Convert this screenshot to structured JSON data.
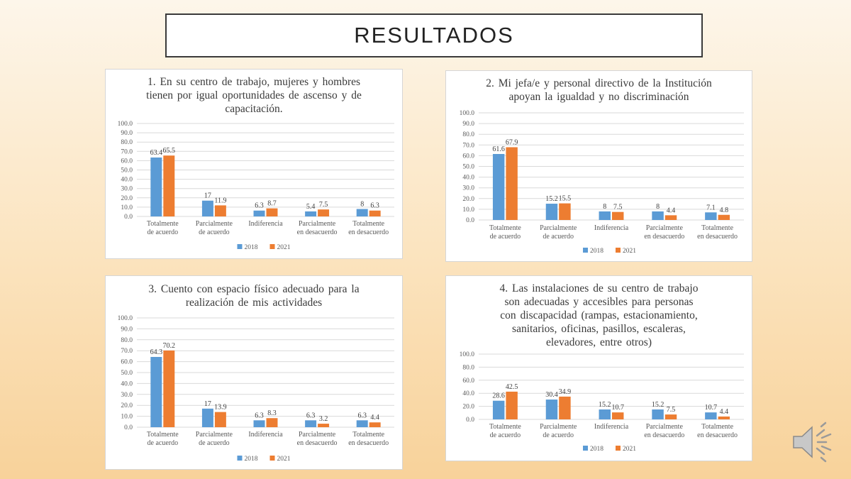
{
  "slide": {
    "title": "RESULTADOS"
  },
  "colors": {
    "s2018": "#5B9BD5",
    "s2021": "#ED7D31",
    "grid": "#d9d9d9",
    "text": "#595959"
  },
  "icons": {
    "audio": "speaker-icon"
  },
  "legend": [
    "2018",
    "2021"
  ],
  "chart_data": [
    {
      "type": "bar",
      "title": "1. En su centro de trabajo, mujeres y hombres tienen por igual oportunidades de ascenso y de capacitación.",
      "categories": [
        "Totalmente de acuerdo",
        "Parcialmente de acuerdo",
        "Indiferencia",
        "Parcialmente en desacuerdo",
        "Totalmente en desacuerdo"
      ],
      "series": [
        {
          "name": "2018",
          "values": [
            63.4,
            17,
            6.3,
            5.4,
            8
          ]
        },
        {
          "name": "2021",
          "values": [
            65.5,
            11.9,
            8.7,
            7.5,
            6.3
          ]
        }
      ],
      "ylim": [
        0,
        100
      ],
      "yticks": [
        "100.0",
        "90.0",
        "80.0",
        "70.0",
        "60.0",
        "50.0",
        "40.0",
        "30.0",
        "20.0",
        "10.0",
        "0.0"
      ],
      "grid": true,
      "legend_position": "bottom"
    },
    {
      "type": "bar",
      "title": "2. Mi jefa/e y personal directivo de la Institución apoyan la igualdad y no discriminación",
      "categories": [
        "Totalmente de acuerdo",
        "Parcialmente de acuerdo",
        "Indiferencia",
        "Parcialmente en desacuerdo",
        "Totalmente en desacuerdo"
      ],
      "series": [
        {
          "name": "2018",
          "values": [
            61.6,
            15.2,
            8,
            8,
            7.1
          ]
        },
        {
          "name": "2021",
          "values": [
            67.9,
            15.5,
            7.5,
            4.4,
            4.8
          ]
        }
      ],
      "ylim": [
        0,
        100
      ],
      "yticks": [
        "100.0",
        "90.0",
        "80.0",
        "70.0",
        "60.0",
        "50.0",
        "40.0",
        "30.0",
        "20.0",
        "10.0",
        "0.0"
      ],
      "grid": true,
      "legend_position": "bottom"
    },
    {
      "type": "bar",
      "title": "3. Cuento con espacio físico adecuado para la realización de mis actividades",
      "categories": [
        "Totalmente de acuerdo",
        "Parcialmente de acuerdo",
        "Indiferencia",
        "Parcialmente en desacuerdo",
        "Totalmente en desacuerdo"
      ],
      "series": [
        {
          "name": "2018",
          "values": [
            64.3,
            17,
            6.3,
            6.3,
            6.3
          ]
        },
        {
          "name": "2021",
          "values": [
            70.2,
            13.9,
            8.3,
            3.2,
            4.4
          ]
        }
      ],
      "ylim": [
        0,
        100
      ],
      "yticks": [
        "100.0",
        "90.0",
        "80.0",
        "70.0",
        "60.0",
        "50.0",
        "40.0",
        "30.0",
        "20.0",
        "10.0",
        "0.0"
      ],
      "grid": true,
      "legend_position": "bottom"
    },
    {
      "type": "bar",
      "title": "4. Las instalaciones de su centro de trabajo son adecuadas y accesibles para personas con discapacidad (rampas, estacionamiento, sanitarios, oficinas, pasillos, escaleras, elevadores, entre otros)",
      "categories": [
        "Totalmente de acuerdo",
        "Parcialmente de acuerdo",
        "Indiferencia",
        "Parcialmente en desacuerdo",
        "Totalmente en desacuerdo"
      ],
      "series": [
        {
          "name": "2018",
          "values": [
            28.6,
            30.4,
            15.2,
            15.2,
            10.7
          ]
        },
        {
          "name": "2021",
          "values": [
            42.5,
            34.9,
            10.7,
            7.5,
            4.4
          ]
        }
      ],
      "ylim": [
        0,
        100
      ],
      "yticks": [
        "100.0",
        "80.0",
        "60.0",
        "40.0",
        "20.0",
        "0.0"
      ],
      "grid": true,
      "legend_position": "bottom"
    }
  ]
}
